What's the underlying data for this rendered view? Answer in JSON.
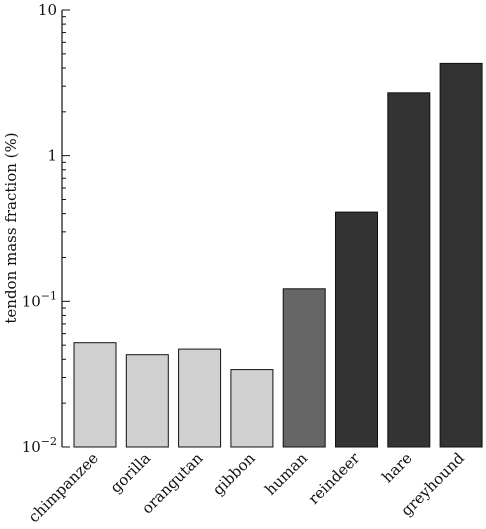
{
  "chart_data": {
    "type": "bar",
    "yscale": "log",
    "ylim": [
      0.01,
      10
    ],
    "ylabel": "tendon mass fraction (%)",
    "y_ticks": [
      {
        "value": 10,
        "base": "10",
        "exp": ""
      },
      {
        "value": 1,
        "base": "1",
        "exp": ""
      },
      {
        "value": 0.1,
        "base": "10",
        "exp": "−1"
      },
      {
        "value": 0.01,
        "base": "10",
        "exp": "−2"
      }
    ],
    "categories": [
      "chimpanzee",
      "gorilla",
      "orangutan",
      "gibbon",
      "human",
      "reindeer",
      "hare",
      "greyhound"
    ],
    "values": [
      0.052,
      0.043,
      0.047,
      0.034,
      0.122,
      0.41,
      2.7,
      4.3
    ],
    "bar_colors": [
      "#d0d0d0",
      "#d0d0d0",
      "#d0d0d0",
      "#d0d0d0",
      "#666666",
      "#333333",
      "#333333",
      "#333333"
    ],
    "grid": false,
    "legend": "none"
  }
}
